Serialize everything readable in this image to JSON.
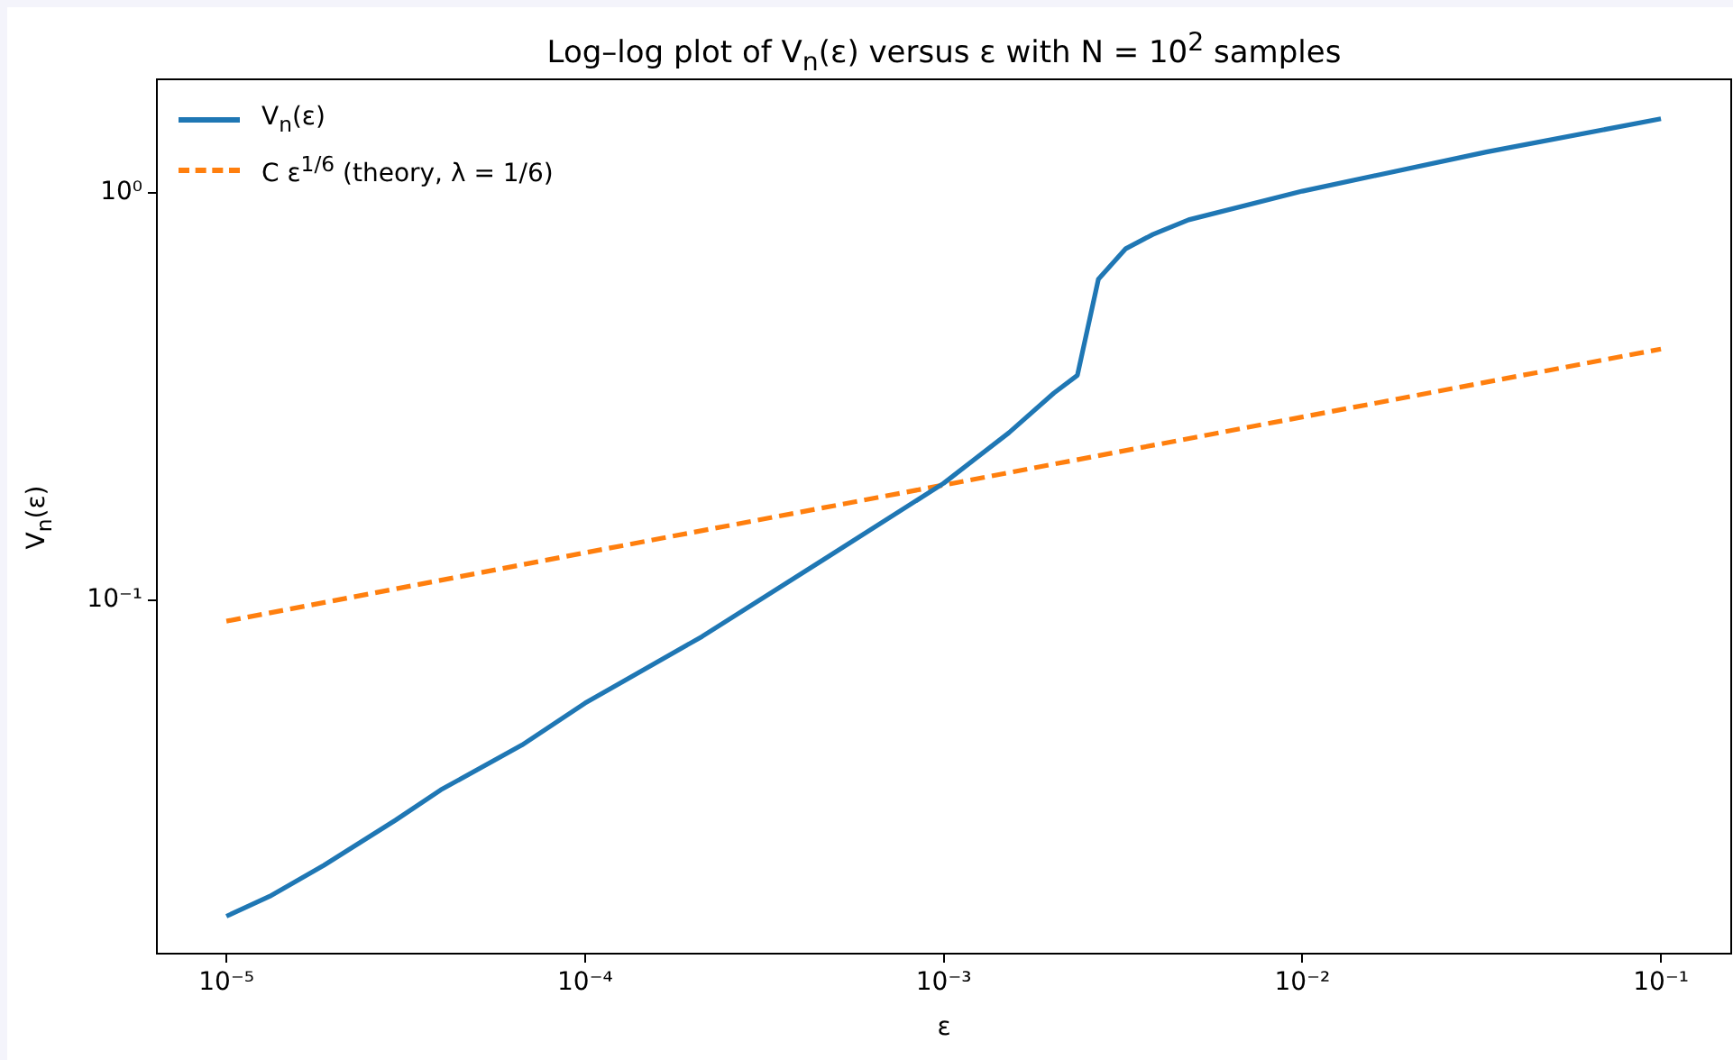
{
  "chart_data": {
    "type": "line",
    "title": "Log–log plot of V$_{n}$(ε) versus ε with N = 10$^{2}$ samples",
    "xlabel": "ε",
    "ylabel": "V$_{n}$(ε)",
    "log": "xy",
    "xlim": [
      6.4e-06,
      0.157
    ],
    "ylim": [
      0.0136,
      1.9
    ],
    "xticks": [
      {
        "value": 1e-05,
        "label": "10⁻⁵"
      },
      {
        "value": 0.0001,
        "label": "10⁻⁴"
      },
      {
        "value": 0.001,
        "label": "10⁻³"
      },
      {
        "value": 0.01,
        "label": "10⁻²"
      },
      {
        "value": 0.1,
        "label": "10⁻¹"
      }
    ],
    "yticks": [
      {
        "value": 0.1,
        "label": "10⁻¹"
      },
      {
        "value": 1,
        "label": "10⁰"
      }
    ],
    "grid": false,
    "legend": "top left",
    "marker": "none",
    "series": [
      {
        "name": "V$_{n}$(ε)",
        "color": "#1f77b4",
        "line_style": "solid",
        "x": [
          1e-05,
          1.32e-05,
          1.87e-05,
          2.96e-05,
          3.96e-05,
          6.67e-05,
          0.0001,
          0.000212,
          0.000466,
          0.001,
          0.00152,
          0.00203,
          0.00236,
          0.0027,
          0.00322,
          0.00383,
          0.00482,
          0.01,
          0.0326,
          0.1
        ],
        "values": [
          0.0168,
          0.0188,
          0.0224,
          0.0289,
          0.0343,
          0.0442,
          0.056,
          0.0816,
          0.1265,
          0.194,
          0.258,
          0.323,
          0.357,
          0.614,
          0.73,
          0.791,
          0.859,
          1.01,
          1.26,
          1.52
        ]
      },
      {
        "name": "C ε$^{1/6}$ (theory, λ = 1/6)",
        "color": "#ff7f0e",
        "line_style": "dashed",
        "x": [
          1e-05,
          0.0001,
          0.001,
          0.01,
          0.1
        ],
        "values": [
          0.089,
          0.131,
          0.192,
          0.282,
          0.414
        ]
      }
    ]
  }
}
